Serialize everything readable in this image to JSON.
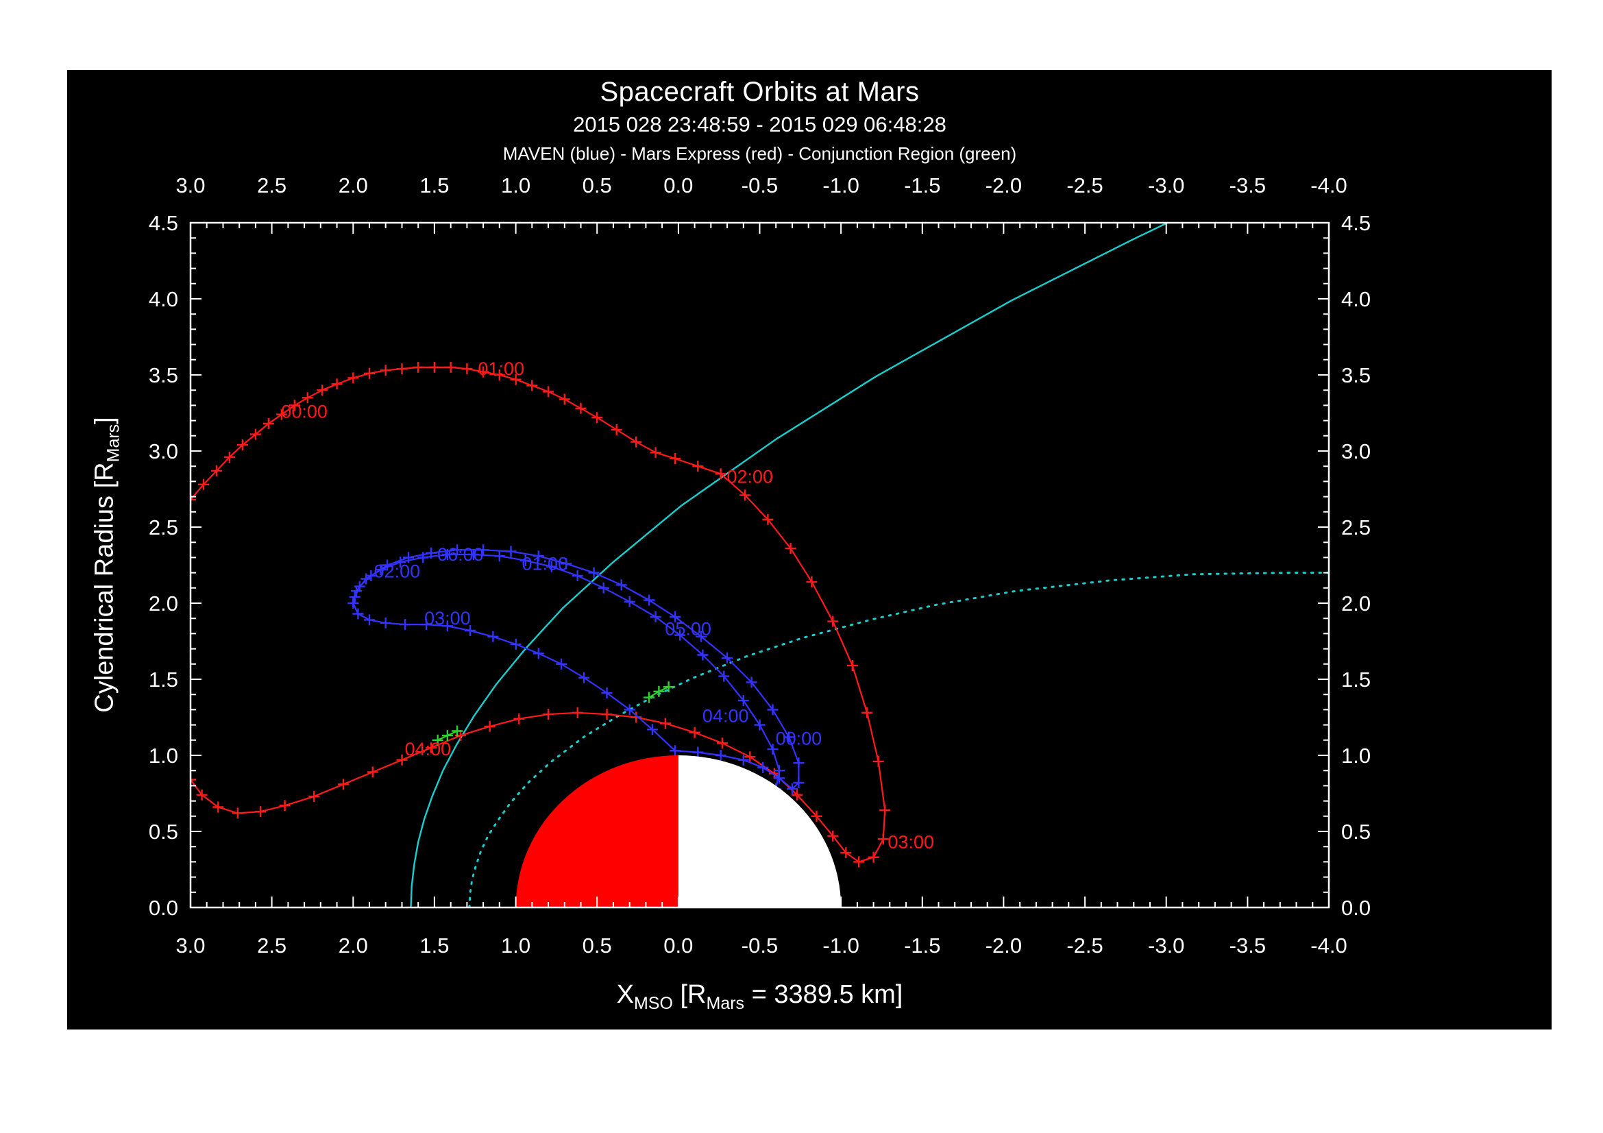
{
  "page": {
    "background": "#ffffff",
    "panel_background": "#000000"
  },
  "chart_data": {
    "type": "line",
    "title": "Spacecraft Orbits at Mars",
    "subtitle": "2015 028 23:48:59 - 2015 029 06:48:28",
    "legend_line": "MAVEN (blue) - Mars Express (red) - Conjunction Region (green)",
    "xlabel": {
      "pre": "X",
      "sub": "MSO",
      "mid": " [R",
      "sub2": "Mars",
      "post": " = 3389.5 km]"
    },
    "ylabel": {
      "pre": "Cylendrical Radius [R",
      "sub": "Mars",
      "post": "]"
    },
    "x_range": [
      3.0,
      -4.0
    ],
    "y_range": [
      0.0,
      4.5
    ],
    "x_ticks": [
      "3.0",
      "2.5",
      "2.0",
      "1.5",
      "1.0",
      "0.5",
      "0.0",
      "-0.5",
      "-1.0",
      "-1.5",
      "-2.0",
      "-2.5",
      "-3.0",
      "-3.5",
      "-4.0"
    ],
    "y_ticks": [
      "0.0",
      "0.5",
      "1.0",
      "1.5",
      "2.0",
      "2.5",
      "3.0",
      "3.5",
      "4.0",
      "4.5"
    ],
    "axis_color": "#ffffff",
    "grid": "off",
    "mars": {
      "center": [
        0,
        0
      ],
      "radius": 1.0,
      "day_color": "#ff0000",
      "night_color": "#ffffff"
    },
    "series": [
      {
        "name": "bow-shock",
        "color": "#18cfcf",
        "style": "solid",
        "width": 2.4,
        "points": [
          [
            1.645,
            0.0
          ],
          [
            1.64,
            0.14
          ],
          [
            1.625,
            0.28
          ],
          [
            1.6,
            0.43
          ],
          [
            1.563,
            0.58
          ],
          [
            1.514,
            0.73
          ],
          [
            1.448,
            0.9
          ],
          [
            1.364,
            1.07
          ],
          [
            1.256,
            1.26
          ],
          [
            1.118,
            1.47
          ],
          [
            0.941,
            1.7
          ],
          [
            0.709,
            1.97
          ],
          [
            0.401,
            2.27
          ],
          [
            -0.017,
            2.64
          ],
          [
            -0.604,
            3.08
          ],
          [
            -1.215,
            3.49
          ],
          [
            -2.05,
            3.99
          ],
          [
            -2.794,
            4.39
          ],
          [
            -3.241,
            4.62
          ]
        ]
      },
      {
        "name": "magnetic-pileup-boundary",
        "color": "#18cfcf",
        "style": "dotted",
        "width": 3,
        "points": [
          [
            1.285,
            0.0
          ],
          [
            1.281,
            0.09
          ],
          [
            1.269,
            0.18
          ],
          [
            1.247,
            0.27
          ],
          [
            1.215,
            0.37
          ],
          [
            1.171,
            0.47
          ],
          [
            1.111,
            0.57
          ],
          [
            1.031,
            0.69
          ],
          [
            0.924,
            0.82
          ],
          [
            0.78,
            0.96
          ],
          [
            0.583,
            1.12
          ],
          [
            0.369,
            1.26
          ],
          [
            0.164,
            1.38
          ],
          [
            -0.093,
            1.51
          ],
          [
            -0.418,
            1.65
          ],
          [
            -0.758,
            1.77
          ],
          [
            -1.178,
            1.89
          ],
          [
            -1.588,
            1.99
          ],
          [
            -2.076,
            2.08
          ],
          [
            -2.658,
            2.15
          ],
          [
            -3.165,
            2.19
          ],
          [
            -3.735,
            2.2
          ],
          [
            -4.151,
            2.2
          ]
        ]
      },
      {
        "name": "mars-express",
        "color": "#ff1a1a",
        "marker": "plus",
        "width": 2.2,
        "points": [
          [
            3.0,
            2.68
          ],
          [
            2.92,
            2.78
          ],
          [
            2.84,
            2.87
          ],
          [
            2.76,
            2.96
          ],
          [
            2.68,
            3.04
          ],
          [
            2.6,
            3.11
          ],
          [
            2.52,
            3.18
          ],
          [
            2.44,
            3.24
          ],
          [
            2.36,
            3.3
          ],
          [
            2.28,
            3.35
          ],
          [
            2.19,
            3.4
          ],
          [
            2.1,
            3.44
          ],
          [
            2.0,
            3.48
          ],
          [
            1.9,
            3.51
          ],
          [
            1.8,
            3.53
          ],
          [
            1.7,
            3.54
          ],
          [
            1.6,
            3.55
          ],
          [
            1.5,
            3.55
          ],
          [
            1.4,
            3.55
          ],
          [
            1.3,
            3.54
          ],
          [
            1.2,
            3.52
          ],
          [
            1.1,
            3.5
          ],
          [
            1.0,
            3.47
          ],
          [
            0.9,
            3.43
          ],
          [
            0.8,
            3.39
          ],
          [
            0.7,
            3.34
          ],
          [
            0.6,
            3.28
          ],
          [
            0.5,
            3.22
          ],
          [
            0.38,
            3.14
          ],
          [
            0.26,
            3.06
          ],
          [
            0.14,
            2.99
          ],
          [
            0.02,
            2.95
          ],
          [
            -0.12,
            2.9
          ],
          [
            -0.26,
            2.85
          ],
          [
            -0.41,
            2.71
          ],
          [
            -0.55,
            2.55
          ],
          [
            -0.69,
            2.36
          ],
          [
            -0.82,
            2.14
          ],
          [
            -0.95,
            1.88
          ],
          [
            -1.07,
            1.59
          ],
          [
            -1.16,
            1.28
          ],
          [
            -1.23,
            0.96
          ],
          [
            -1.27,
            0.64
          ],
          [
            -1.26,
            0.45
          ],
          [
            -1.2,
            0.33
          ],
          [
            -1.11,
            0.3
          ],
          [
            -1.03,
            0.36
          ],
          [
            -0.95,
            0.47
          ],
          [
            -0.85,
            0.6
          ],
          [
            -0.73,
            0.74
          ],
          [
            -0.59,
            0.88
          ],
          [
            -0.44,
            0.99
          ],
          [
            -0.27,
            1.08
          ],
          [
            -0.1,
            1.15
          ],
          [
            0.08,
            1.21
          ],
          [
            0.26,
            1.25
          ],
          [
            0.44,
            1.27
          ],
          [
            0.62,
            1.28
          ],
          [
            0.8,
            1.27
          ],
          [
            0.98,
            1.24
          ],
          [
            1.16,
            1.19
          ],
          [
            1.34,
            1.13
          ],
          [
            1.52,
            1.05
          ],
          [
            1.7,
            0.97
          ],
          [
            1.88,
            0.89
          ],
          [
            2.06,
            0.81
          ],
          [
            2.24,
            0.73
          ],
          [
            2.42,
            0.67
          ],
          [
            2.57,
            0.63
          ],
          [
            2.71,
            0.62
          ],
          [
            2.83,
            0.66
          ],
          [
            2.93,
            0.74
          ],
          [
            3.0,
            0.84
          ]
        ]
      },
      {
        "name": "maven",
        "color": "#3333ff",
        "marker": "plus",
        "width": 2.2,
        "points": [
          [
            -0.6,
            0.78
          ],
          [
            -0.62,
            0.9
          ],
          [
            -0.58,
            1.04
          ],
          [
            -0.5,
            1.2
          ],
          [
            -0.4,
            1.36
          ],
          [
            -0.28,
            1.52
          ],
          [
            -0.15,
            1.66
          ],
          [
            -0.01,
            1.79
          ],
          [
            0.14,
            1.91
          ],
          [
            0.3,
            2.01
          ],
          [
            0.46,
            2.1
          ],
          [
            0.62,
            2.18
          ],
          [
            0.78,
            2.24
          ],
          [
            0.94,
            2.28
          ],
          [
            1.1,
            2.31
          ],
          [
            1.26,
            2.32
          ],
          [
            1.42,
            2.32
          ],
          [
            1.57,
            2.3
          ],
          [
            1.71,
            2.27
          ],
          [
            1.83,
            2.22
          ],
          [
            1.92,
            2.16
          ],
          [
            1.98,
            2.08
          ],
          [
            2.0,
            2.0
          ],
          [
            1.97,
            1.93
          ],
          [
            1.9,
            1.89
          ],
          [
            1.8,
            1.87
          ],
          [
            1.68,
            1.86
          ],
          [
            1.55,
            1.86
          ],
          [
            1.42,
            1.85
          ],
          [
            1.28,
            1.82
          ],
          [
            1.14,
            1.78
          ],
          [
            1.0,
            1.73
          ],
          [
            0.86,
            1.67
          ],
          [
            0.72,
            1.6
          ],
          [
            0.58,
            1.51
          ],
          [
            0.44,
            1.41
          ],
          [
            0.3,
            1.3
          ],
          [
            0.16,
            1.17
          ],
          [
            0.02,
            1.03
          ],
          [
            -0.12,
            1.02
          ],
          [
            -0.26,
            1.0
          ],
          [
            -0.4,
            0.97
          ],
          [
            -0.52,
            0.92
          ],
          [
            -0.62,
            0.85
          ],
          [
            -0.7,
            0.78
          ],
          [
            -0.74,
            0.82
          ],
          [
            -0.74,
            0.95
          ],
          [
            -0.68,
            1.12
          ],
          [
            -0.58,
            1.3
          ],
          [
            -0.45,
            1.48
          ],
          [
            -0.3,
            1.64
          ],
          [
            -0.14,
            1.78
          ],
          [
            0.02,
            1.91
          ],
          [
            0.18,
            2.02
          ],
          [
            0.35,
            2.12
          ],
          [
            0.52,
            2.2
          ],
          [
            0.69,
            2.26
          ],
          [
            0.86,
            2.31
          ],
          [
            1.03,
            2.34
          ],
          [
            1.2,
            2.35
          ],
          [
            1.36,
            2.35
          ],
          [
            1.52,
            2.33
          ],
          [
            1.66,
            2.3
          ],
          [
            1.79,
            2.25
          ],
          [
            1.89,
            2.18
          ],
          [
            1.96,
            2.11
          ],
          [
            1.99,
            2.04
          ]
        ]
      },
      {
        "name": "conjunction-region-upper",
        "color": "#2fd12f",
        "marker": "plus",
        "width": 2.2,
        "points": [
          [
            0.18,
            1.38
          ],
          [
            0.12,
            1.42
          ],
          [
            0.06,
            1.45
          ]
        ]
      },
      {
        "name": "conjunction-region-lower",
        "color": "#2fd12f",
        "marker": "plus",
        "width": 2.2,
        "points": [
          [
            1.48,
            1.1
          ],
          [
            1.42,
            1.13
          ],
          [
            1.36,
            1.16
          ]
        ]
      }
    ],
    "annotations": [
      {
        "text": "00:00",
        "x": 2.3,
        "y": 3.26,
        "color": "#ff1a1a"
      },
      {
        "text": "01:00",
        "x": 1.09,
        "y": 3.54,
        "color": "#ff1a1a"
      },
      {
        "text": "02:00",
        "x": -0.44,
        "y": 2.83,
        "color": "#ff1a1a"
      },
      {
        "text": "03:00",
        "x": -1.43,
        "y": 0.43,
        "color": "#ff1a1a"
      },
      {
        "text": "04:00",
        "x": 1.54,
        "y": 1.04,
        "color": "#ff1a1a"
      },
      {
        "text": "00:00",
        "x": -0.74,
        "y": 1.11,
        "color": "#3333ff"
      },
      {
        "text": "01:00",
        "x": 0.82,
        "y": 2.26,
        "color": "#3333ff"
      },
      {
        "text": "02:00",
        "x": 1.73,
        "y": 2.21,
        "color": "#3333ff"
      },
      {
        "text": "03:00",
        "x": 1.42,
        "y": 1.9,
        "color": "#3333ff"
      },
      {
        "text": "04:00",
        "x": -0.29,
        "y": 1.26,
        "color": "#3333ff"
      },
      {
        "text": "05:00",
        "x": -0.06,
        "y": 1.83,
        "color": "#3333ff"
      },
      {
        "text": "06:00",
        "x": 1.34,
        "y": 2.32,
        "color": "#3333ff"
      }
    ]
  }
}
